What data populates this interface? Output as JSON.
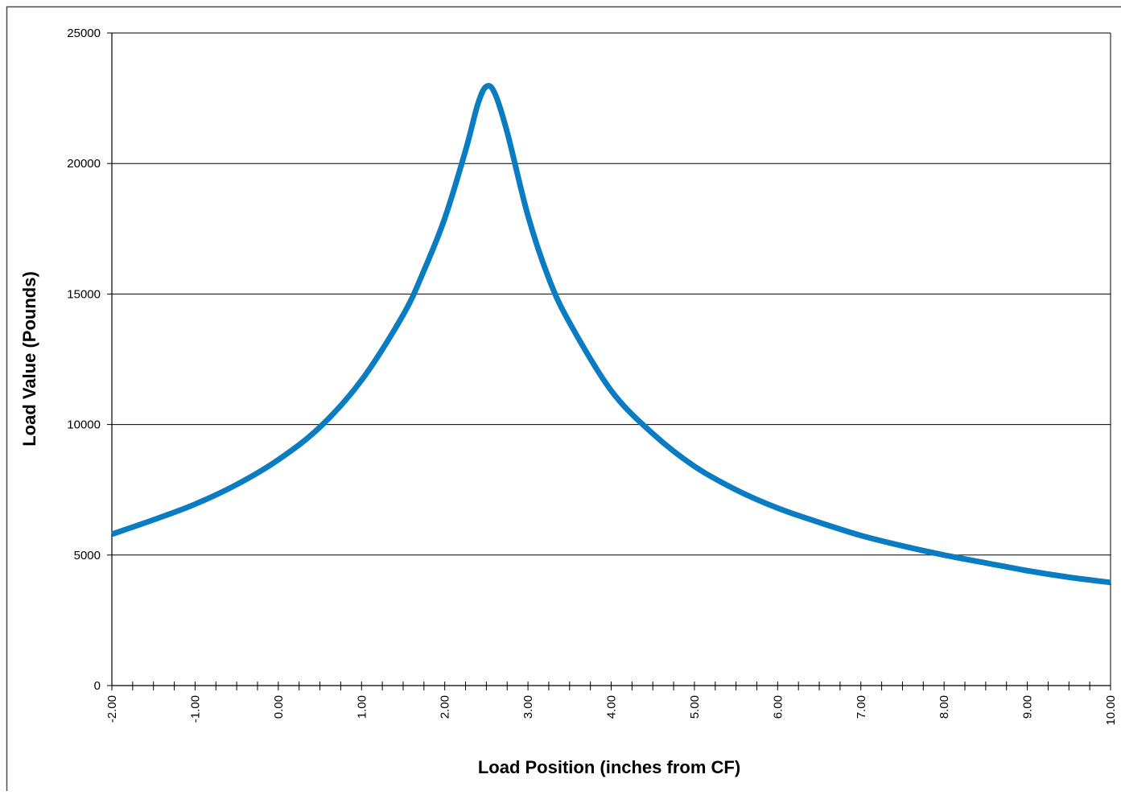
{
  "chart_data": {
    "type": "line",
    "title": "",
    "xlabel": "Load Position (inches from CF)",
    "ylabel": "Load Value (Pounds)",
    "xlim": [
      -2.0,
      10.0
    ],
    "ylim": [
      0,
      25000
    ],
    "x_tick_labels": [
      "-2.00",
      "-1.00",
      "0.00",
      "1.00",
      "2.00",
      "3.00",
      "4.00",
      "5.00",
      "6.00",
      "7.00",
      "8.00",
      "9.00",
      "10.00"
    ],
    "x_tick_values": [
      -2,
      -1,
      0,
      1,
      2,
      3,
      4,
      5,
      6,
      7,
      8,
      9,
      10
    ],
    "y_tick_labels": [
      "0",
      "5000",
      "10000",
      "15000",
      "20000",
      "25000"
    ],
    "y_tick_values": [
      0,
      5000,
      10000,
      15000,
      20000,
      25000
    ],
    "minor_x_step": 0.25,
    "grid": "horizontal major",
    "legend": "none",
    "series": [
      {
        "color": "#0A7CC1",
        "x": [
          -2.0,
          -1.5,
          -1.0,
          -0.5,
          0.0,
          0.5,
          1.0,
          1.5,
          1.75,
          2.0,
          2.25,
          2.4,
          2.5,
          2.6,
          2.75,
          3.0,
          3.25,
          3.5,
          4.0,
          4.5,
          5.0,
          5.5,
          6.0,
          6.5,
          7.0,
          7.5,
          8.0,
          8.5,
          9.0,
          9.5,
          10.0
        ],
        "y": [
          5800,
          6350,
          6950,
          7700,
          8650,
          9900,
          11700,
          14200,
          15900,
          17900,
          20500,
          22300,
          22950,
          22700,
          21200,
          18000,
          15600,
          13900,
          11300,
          9650,
          8400,
          7500,
          6800,
          6250,
          5750,
          5350,
          5000,
          4700,
          4400,
          4150,
          3950
        ]
      }
    ]
  }
}
